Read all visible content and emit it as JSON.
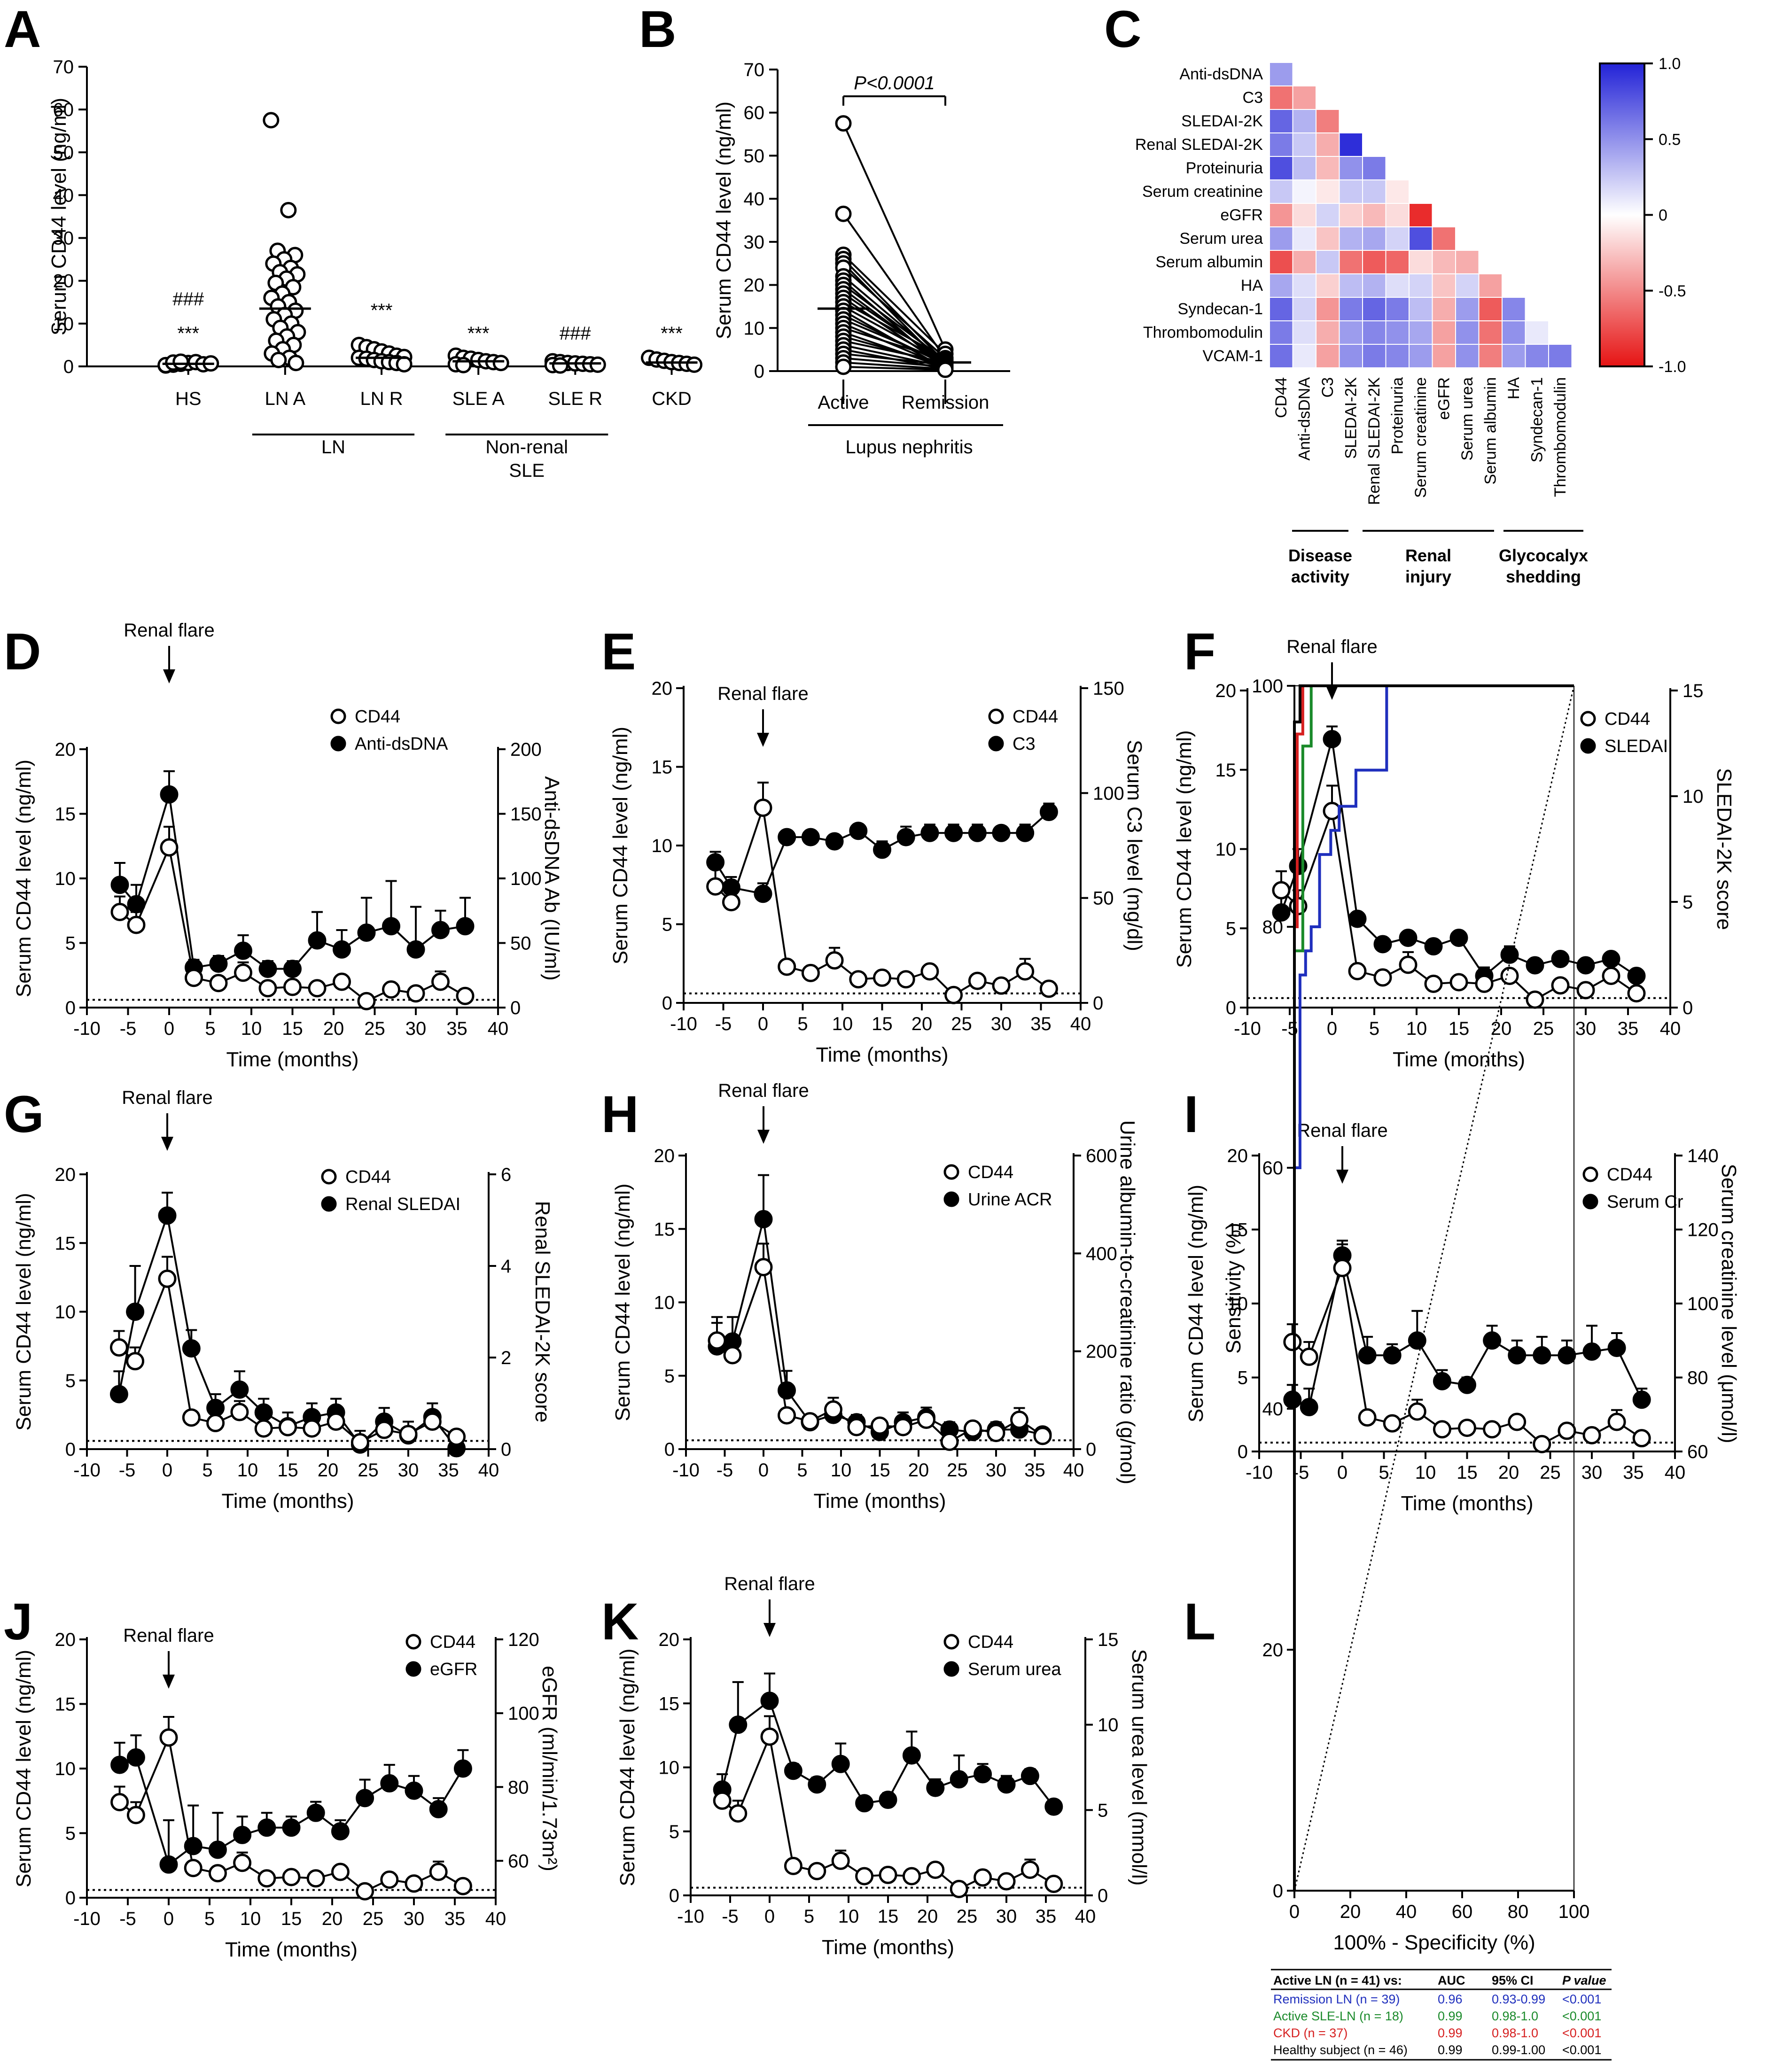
{
  "panels": {
    "letters": [
      "A",
      "B",
      "C",
      "D",
      "E",
      "F",
      "G",
      "H",
      "I",
      "J",
      "K",
      "L"
    ]
  },
  "common": {
    "time_label": "Time (months)",
    "cd44_label": "Serum CD44 level (ng/ml)",
    "flare": "Renal flare",
    "cd44_legend": "CD44",
    "x_ticks": [
      "-10",
      "-5",
      "0",
      "5",
      "10",
      "15",
      "20",
      "25",
      "30",
      "35",
      "40"
    ],
    "left_ticks": [
      "0",
      "5",
      "10",
      "15",
      "20"
    ],
    "time": [
      -6,
      -4,
      0,
      3,
      6,
      9,
      12,
      15,
      18,
      21,
      24,
      27,
      30,
      33,
      36
    ],
    "cd44_mean": [
      7.4,
      6.4,
      12.4,
      2.3,
      1.9,
      2.7,
      1.5,
      1.6,
      1.5,
      2.0,
      0.5,
      1.4,
      1.1,
      2.0,
      0.9
    ],
    "cd44_err": [
      1.2,
      1.0,
      1.6,
      0.3,
      0.3,
      0.8,
      0.3,
      0.3,
      0.3,
      0.4,
      0.2,
      0.3,
      0.4,
      0.8,
      0.3
    ],
    "baseline": 0.6
  },
  "chart_data": [
    {
      "panel": "A",
      "type": "scatter",
      "ylabel": "Serum CD44 level (ng/ml)",
      "ylim": [
        0,
        70
      ],
      "y_ticks": [
        "0",
        "10",
        "20",
        "30",
        "40",
        "50",
        "60",
        "70"
      ],
      "categories": [
        "HS",
        "LN A",
        "LN R",
        "SLE A",
        "SLE R",
        "CKD"
      ],
      "groups": [
        {
          "text": "LN"
        },
        {
          "text": "Non-renal"
        },
        {
          "text": "SLE"
        }
      ],
      "annotations": [
        {
          "text": "###"
        },
        {
          "text": "***"
        },
        {
          "text": "***"
        },
        {
          "text": "***"
        },
        {
          "text": "###"
        },
        {
          "text": "***"
        }
      ],
      "medians": [
        0.6,
        13.5,
        2.0,
        1.2,
        0.7,
        0.9
      ],
      "points": [
        [
          0.2,
          0.4,
          0.6,
          0.8,
          1.0,
          0.5,
          0.7,
          0.3,
          0.9,
          1.1
        ],
        [
          57.5,
          36.5,
          27,
          26,
          25,
          24,
          23,
          22,
          21.5,
          20.5,
          19.5,
          18.5,
          17,
          16,
          15,
          14,
          13,
          12,
          11,
          10,
          9,
          8,
          7,
          6,
          5,
          4,
          3,
          2,
          1.5,
          0.8
        ],
        [
          5,
          4.5,
          4,
          3.5,
          3,
          2.5,
          2.2,
          2,
          1.8,
          1.5,
          1.2,
          1,
          0.8,
          0.5
        ],
        [
          2.5,
          2,
          1.8,
          1.5,
          1.2,
          1,
          0.8,
          0.5,
          0.3
        ],
        [
          1.2,
          1,
          0.8,
          0.7,
          0.6,
          0.5,
          0.4,
          0.3,
          0.2
        ],
        [
          2,
          1.6,
          1.3,
          1,
          0.8,
          0.6,
          0.4
        ]
      ]
    },
    {
      "panel": "B",
      "type": "line",
      "ylabel": "Serum CD44 level (ng/ml)",
      "ylim": [
        0,
        70
      ],
      "y_ticks": [
        "0",
        "10",
        "20",
        "30",
        "40",
        "50",
        "60",
        "70"
      ],
      "categories": [
        "Active",
        "Remission"
      ],
      "group_label": "Lupus nephritis",
      "pvalue": "P<0.0001",
      "medians": [
        14.5,
        2.0
      ],
      "pairs": [
        [
          57.5,
          5
        ],
        [
          36.5,
          3
        ],
        [
          27,
          4
        ],
        [
          26,
          2
        ],
        [
          25,
          1
        ],
        [
          24,
          3
        ],
        [
          22,
          2
        ],
        [
          21,
          0.5
        ],
        [
          20,
          2.5
        ],
        [
          19,
          1.5
        ],
        [
          18,
          2
        ],
        [
          17,
          1
        ],
        [
          16,
          3
        ],
        [
          15,
          2
        ],
        [
          14,
          0.5
        ],
        [
          13,
          1.5
        ],
        [
          12,
          2
        ],
        [
          11,
          1
        ],
        [
          10,
          2.5
        ],
        [
          9,
          0.8
        ],
        [
          8,
          1.5
        ],
        [
          7,
          2
        ],
        [
          6,
          1
        ],
        [
          5,
          0.5
        ],
        [
          4,
          1.5
        ],
        [
          3,
          1
        ],
        [
          2,
          0.5
        ],
        [
          1,
          0.3
        ]
      ]
    },
    {
      "panel": "C",
      "type": "heatmap",
      "rows": [
        "Anti-dsDNA",
        "C3",
        "SLEDAI-2K",
        "Renal SLEDAI-2K",
        "Proteinuria",
        "Serum creatinine",
        "eGFR",
        "Serum urea",
        "Serum albumin",
        "HA",
        "Syndecan-1",
        "Thrombomodulin",
        "VCAM-1"
      ],
      "cols": [
        "CD44",
        "Anti-dsDNA",
        "C3",
        "SLEDAI-2K",
        "Renal SLEDAI-2K",
        "Proteinuria",
        "Serum creatinine",
        "eGFR",
        "Serum urea",
        "Serum albumin",
        "HA",
        "Syndecan-1",
        "Thrombomodulin"
      ],
      "groups": [
        {
          "line1": "Disease",
          "line2": "activity"
        },
        {
          "line1": "Renal",
          "line2": "injury"
        },
        {
          "line1": "Glycocalyx",
          "line2": "shedding"
        }
      ],
      "colorbar_ticks": [
        "1.0",
        "0.5",
        "0",
        "-0.5",
        "-1.0"
      ],
      "values": [
        [
          0.45
        ],
        [
          -0.6,
          -0.4
        ],
        [
          0.7,
          0.35,
          -0.55
        ],
        [
          0.6,
          0.25,
          -0.35,
          0.95
        ],
        [
          0.8,
          0.3,
          -0.3,
          0.5,
          0.6
        ],
        [
          0.25,
          0.05,
          -0.1,
          0.25,
          0.25,
          -0.1
        ],
        [
          -0.45,
          -0.15,
          0.2,
          -0.2,
          -0.3,
          -0.15,
          -0.9
        ],
        [
          0.45,
          0.1,
          -0.25,
          0.35,
          0.4,
          0.2,
          0.8,
          -0.6
        ],
        [
          -0.75,
          -0.35,
          0.25,
          -0.6,
          -0.7,
          -0.65,
          -0.15,
          -0.3,
          -0.35
        ],
        [
          0.4,
          0.15,
          -0.2,
          0.3,
          0.35,
          0.15,
          0.2,
          -0.25,
          0.2,
          -0.4
        ],
        [
          0.7,
          0.2,
          -0.45,
          0.6,
          0.7,
          0.6,
          0.3,
          -0.35,
          0.45,
          -0.7,
          0.55
        ],
        [
          0.6,
          0.15,
          -0.35,
          0.45,
          0.55,
          0.5,
          0.4,
          -0.4,
          0.5,
          -0.6,
          0.5,
          0.1
        ],
        [
          0.65,
          0.1,
          -0.4,
          0.5,
          0.6,
          0.55,
          0.45,
          -0.4,
          0.5,
          -0.55,
          0.45,
          0.55,
          0.6
        ]
      ]
    },
    {
      "panel": "D",
      "type": "line",
      "right_label": "Anti-dsDNA Ab (IU/ml)",
      "right_ticks": [
        "0",
        "50",
        "100",
        "150",
        "200"
      ],
      "right_max": 200,
      "legend2": "Anti-dsDNA",
      "s2": [
        95,
        80,
        165,
        31,
        34,
        44,
        30,
        30,
        52,
        45,
        58,
        63,
        45,
        60,
        63
      ],
      "e2": [
        17,
        15,
        18,
        6,
        6,
        12,
        6,
        6,
        22,
        15,
        27,
        35,
        33,
        15,
        22
      ]
    },
    {
      "panel": "E",
      "type": "line",
      "right_label": "Serum C3 level (mg/dl)",
      "right_ticks": [
        "0",
        "50",
        "100",
        "150"
      ],
      "right_max": 150,
      "legend2": "C3",
      "s2": [
        67,
        55,
        52,
        79,
        79,
        77,
        82,
        73,
        79,
        81,
        81,
        81,
        81,
        81,
        91
      ],
      "e2": [
        5,
        5,
        5,
        3,
        3,
        3,
        3,
        4,
        5,
        4,
        4,
        4,
        3,
        4,
        4
      ]
    },
    {
      "panel": "F",
      "type": "line",
      "right_label": "SLEDAI-2K score",
      "right_ticks": [
        "0",
        "5",
        "10",
        "15"
      ],
      "right_max": 15,
      "legend2": "SLEDAI",
      "s2": [
        4.5,
        6.7,
        12.7,
        4.2,
        3.0,
        3.3,
        2.9,
        3.3,
        1.5,
        2.5,
        2.0,
        2.3,
        2.0,
        2.3,
        1.5
      ],
      "e2": [
        1.3,
        0.8,
        0.6,
        0.3,
        0.3,
        0.3,
        0.3,
        0.3,
        0.4,
        0.4,
        0.3,
        0.3,
        0.3,
        0.3,
        0.3
      ]
    },
    {
      "panel": "G",
      "type": "line",
      "right_label": "Renal SLEDAI-2K score",
      "right_ticks": [
        "0",
        "2",
        "4",
        "6"
      ],
      "right_max": 6,
      "legend2": "Renal SLEDAI",
      "s2": [
        1.2,
        3.0,
        5.1,
        2.2,
        0.9,
        1.3,
        0.8,
        0.5,
        0.7,
        0.8,
        0.1,
        0.6,
        0.3,
        0.7,
        0.02
      ],
      "e2": [
        0.5,
        1.0,
        0.5,
        0.4,
        0.3,
        0.4,
        0.3,
        0.3,
        0.3,
        0.3,
        0.3,
        0.3,
        0.3,
        0.3,
        0.3
      ]
    },
    {
      "panel": "H",
      "type": "line",
      "right_label": "Urine albumin-to-creatinine ratio (g/mol)",
      "right_ticks": [
        "0",
        "200",
        "400",
        "600"
      ],
      "right_max": 600,
      "legend2": "Urine ACR",
      "s2": [
        210,
        220,
        470,
        120,
        55,
        70,
        55,
        35,
        55,
        65,
        40,
        35,
        40,
        40,
        30
      ],
      "e2": [
        60,
        50,
        90,
        40,
        15,
        15,
        15,
        15,
        20,
        20,
        15,
        15,
        15,
        15,
        10
      ]
    },
    {
      "panel": "I",
      "type": "line",
      "right_label": "Serum creatinine level (μmol/l)",
      "right_ticks": [
        "60",
        "80",
        "100",
        "120",
        "140"
      ],
      "right_min": 60,
      "right_max": 140,
      "legend2": "Serum Cr",
      "s2": [
        74,
        72,
        113,
        86,
        86,
        90,
        79,
        78,
        90,
        86,
        86,
        86,
        87,
        88,
        74
      ],
      "e2": [
        4,
        5,
        4,
        5,
        3,
        8,
        3,
        2,
        4,
        4,
        5,
        4,
        7,
        4,
        3
      ]
    },
    {
      "panel": "J",
      "type": "line",
      "right_label": "eGFR (ml/min/1.73m²)",
      "right_ticks": [
        "60",
        "80",
        "100",
        "120"
      ],
      "right_min": 50,
      "right_max": 120,
      "legend2": "eGFR",
      "s2": [
        86,
        88,
        59,
        64,
        63,
        67,
        69,
        69,
        73,
        68,
        77,
        81,
        79,
        74,
        85
      ],
      "e2": [
        6,
        6,
        12,
        11,
        10,
        5,
        4,
        3,
        3,
        3,
        5,
        5,
        4,
        3,
        5
      ]
    },
    {
      "panel": "K",
      "type": "line",
      "right_label": "Serum urea level (mmol/l)",
      "right_ticks": [
        "0",
        "5",
        "10",
        "15"
      ],
      "right_max": 15,
      "legend2": "Serum urea",
      "s2": [
        6.2,
        10,
        11.4,
        7.3,
        6.5,
        7.7,
        5.4,
        5.6,
        8.2,
        6.3,
        6.8,
        7.1,
        6.5,
        7.0,
        5.2
      ],
      "e2": [
        0.9,
        2.5,
        1.6,
        0.4,
        0.4,
        1.2,
        0.3,
        0.4,
        1.4,
        0.5,
        1.4,
        0.6,
        0.5,
        0.4,
        0.3
      ]
    },
    {
      "panel": "L",
      "type": "line",
      "xlabel": "100% - Specificity (%)",
      "ylabel": "Sensitivity (%)",
      "ticks": [
        "0",
        "20",
        "40",
        "60",
        "80",
        "100"
      ],
      "curves": [
        {
          "color": "#1f2fbd",
          "x": [
            0,
            0,
            2,
            2,
            4,
            4,
            6,
            6,
            9,
            9,
            13,
            13,
            16,
            16,
            22,
            22,
            33,
            33,
            100
          ],
          "y": [
            0,
            60,
            60,
            76,
            76,
            78,
            78,
            80,
            80,
            86,
            86,
            88,
            88,
            90,
            90,
            93,
            93,
            100,
            100
          ]
        },
        {
          "color": "#1a8a2a",
          "x": [
            0,
            0,
            3,
            3,
            6,
            6,
            100
          ],
          "y": [
            0,
            78,
            78,
            95,
            95,
            100,
            100
          ]
        },
        {
          "color": "#d62020",
          "x": [
            0,
            0,
            1,
            1,
            3,
            3,
            100
          ],
          "y": [
            0,
            80,
            80,
            96,
            96,
            100,
            100
          ]
        },
        {
          "color": "#000000",
          "x": [
            0,
            0,
            2,
            2,
            100
          ],
          "y": [
            0,
            97,
            97,
            100,
            100
          ]
        }
      ],
      "table": {
        "header": [
          "Active LN (n = 41) vs:",
          "AUC",
          "95% CI",
          "P value"
        ],
        "rows": [
          {
            "cells": [
              "Remission  LN (n = 39)",
              "0.96",
              "0.93-0.99",
              "<0.001"
            ],
            "color": "#1f2fbd"
          },
          {
            "cells": [
              "Active SLE-LN (n = 18)",
              "0.99",
              "0.98-1.0",
              "<0.001"
            ],
            "color": "#1a8a2a"
          },
          {
            "cells": [
              "CKD (n = 37)",
              "0.99",
              "0.98-1.0",
              "<0.001"
            ],
            "color": "#d62020"
          },
          {
            "cells": [
              "Healthy subject (n = 46)",
              "0.99",
              "0.99-1.00",
              "<0.001"
            ],
            "color": "#000000"
          }
        ]
      }
    }
  ]
}
